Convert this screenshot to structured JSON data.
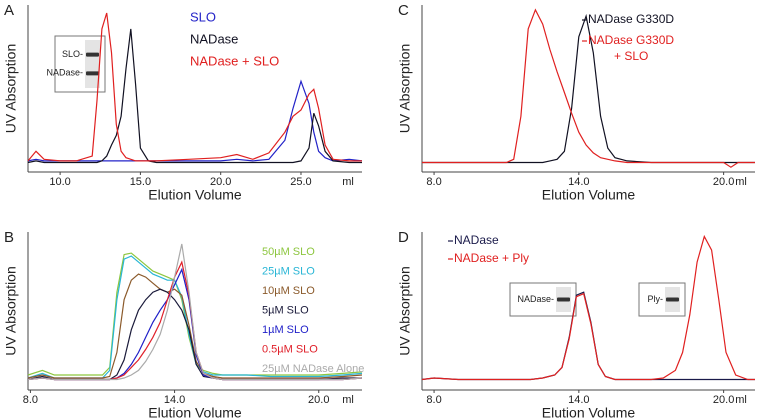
{
  "chart_data": [
    {
      "type": "line",
      "label": "A",
      "xlabel": "Elution Volume",
      "ylabel": "UV Absorption",
      "x_unit": "ml",
      "xlim": [
        8,
        28.8
      ],
      "ylim": [
        -5,
        100
      ],
      "xticks": [
        {
          "value": 10,
          "label": "10.0"
        },
        {
          "value": 15,
          "label": "15.0"
        },
        {
          "value": 20,
          "label": "20.0"
        },
        {
          "value": 25,
          "label": "25.0"
        }
      ],
      "x": [
        8,
        8.5,
        9,
        10,
        11,
        12,
        12.3,
        12.6,
        12.9,
        13.2,
        13.5,
        13.8,
        14.1,
        14.4,
        14.7,
        15,
        15.5,
        16,
        18,
        20,
        21,
        22,
        23,
        24,
        24.5,
        25,
        25.5,
        25.8,
        26.1,
        26.5,
        27,
        28,
        28.8
      ],
      "series": [
        {
          "name": "SLO",
          "color": "#2323c8",
          "values": [
            2,
            3,
            2,
            2,
            2,
            2,
            2,
            2,
            2,
            2,
            2,
            2,
            2,
            2,
            2,
            2,
            2,
            2,
            2,
            2,
            3,
            2,
            3,
            15,
            35,
            52,
            38,
            20,
            8,
            4,
            2,
            3,
            2
          ]
        },
        {
          "name": "NADase",
          "color": "#111122",
          "values": [
            1,
            2,
            1,
            1,
            1,
            1,
            1,
            2,
            5,
            12,
            18,
            30,
            60,
            85,
            50,
            10,
            2,
            1,
            1,
            1,
            1,
            1,
            1,
            1,
            1,
            2,
            10,
            32,
            24,
            8,
            2,
            1,
            1
          ]
        },
        {
          "name": "NADase + SLO",
          "color": "#e02020",
          "values": [
            2,
            8,
            3,
            2,
            2,
            5,
            40,
            85,
            95,
            70,
            25,
            8,
            4,
            3,
            2,
            2,
            2,
            2,
            3,
            4,
            6,
            3,
            7,
            20,
            30,
            34,
            44,
            47,
            35,
            12,
            3,
            2,
            2
          ]
        }
      ],
      "insets": [
        {
          "labels": [
            "SLO-",
            "NADase-"
          ]
        }
      ]
    },
    {
      "type": "line",
      "label": "B",
      "xlabel": "Elution Volume",
      "ylabel": "UV Absorption",
      "x_unit": "ml",
      "xlim": [
        7.9,
        21.8
      ],
      "ylim": [
        -5,
        100
      ],
      "xticks": [
        {
          "value": 8,
          "label": "8.0"
        },
        {
          "value": 14,
          "label": "14.0"
        },
        {
          "value": 20,
          "label": "20.0"
        }
      ],
      "x": [
        7.9,
        8.5,
        9,
        10,
        11,
        11.3,
        11.6,
        11.9,
        12.2,
        12.5,
        12.8,
        13.1,
        13.4,
        13.7,
        14,
        14.3,
        14.6,
        14.9,
        15.2,
        15.6,
        16,
        17,
        18,
        19,
        20,
        21,
        21.8
      ],
      "series": [
        {
          "name": "50µM SLO",
          "color": "#8dc63f",
          "values": [
            5,
            8,
            5,
            5,
            5,
            10,
            60,
            85,
            86,
            82,
            78,
            74,
            72,
            70,
            68,
            55,
            30,
            12,
            8,
            6,
            5,
            5,
            5,
            5,
            5,
            6,
            7
          ]
        },
        {
          "name": "25µM SLO",
          "color": "#29b6d6",
          "values": [
            3,
            6,
            3,
            3,
            3,
            8,
            55,
            82,
            84,
            80,
            76,
            72,
            70,
            68,
            68,
            57,
            32,
            12,
            7,
            5,
            5,
            5,
            4,
            4,
            4,
            5,
            6
          ]
        },
        {
          "name": "10µM SLO",
          "color": "#8b5a2b",
          "values": [
            3,
            5,
            3,
            3,
            3,
            4,
            20,
            55,
            68,
            72,
            70,
            66,
            62,
            60,
            62,
            58,
            38,
            14,
            6,
            4,
            3,
            3,
            3,
            3,
            3,
            4,
            5
          ]
        },
        {
          "name": "5µM SLO",
          "color": "#1a1a3a",
          "values": [
            2,
            4,
            2,
            2,
            2,
            2,
            5,
            15,
            35,
            48,
            55,
            60,
            62,
            60,
            55,
            48,
            35,
            12,
            4,
            3,
            2,
            2,
            2,
            2,
            2,
            3,
            3
          ]
        },
        {
          "name": "1µM SLO",
          "color": "#1f1fc8",
          "values": [
            2,
            3,
            2,
            2,
            2,
            2,
            3,
            6,
            12,
            20,
            30,
            40,
            48,
            55,
            65,
            75,
            55,
            18,
            5,
            3,
            2,
            2,
            2,
            2,
            2,
            2,
            3
          ]
        },
        {
          "name": "0.5µM SLO",
          "color": "#e0202a",
          "values": [
            2,
            3,
            2,
            2,
            2,
            2,
            3,
            5,
            10,
            15,
            22,
            30,
            40,
            55,
            70,
            80,
            58,
            20,
            6,
            3,
            2,
            2,
            2,
            2,
            2,
            2,
            3
          ]
        },
        {
          "name": "25µM NADase Alone",
          "color": "#aaaaaa",
          "values": [
            2,
            3,
            2,
            2,
            2,
            2,
            2,
            3,
            5,
            8,
            14,
            22,
            32,
            48,
            70,
            92,
            60,
            20,
            6,
            3,
            2,
            2,
            2,
            2,
            2,
            2,
            3
          ]
        }
      ]
    },
    {
      "type": "line",
      "label": "C",
      "xlabel": "Elution Volume",
      "ylabel": "UV Absorption",
      "x_unit": "ml",
      "xlim": [
        7.5,
        21.3
      ],
      "ylim": [
        -5,
        100
      ],
      "xticks": [
        {
          "value": 8,
          "label": "8.0"
        },
        {
          "value": 14,
          "label": "14.0"
        },
        {
          "value": 20,
          "label": "20.0"
        }
      ],
      "x": [
        7.5,
        8,
        9,
        10,
        10.5,
        11,
        11.3,
        11.6,
        11.9,
        12.2,
        12.5,
        12.8,
        13.1,
        13.4,
        13.7,
        14,
        14.3,
        14.6,
        14.9,
        15.2,
        15.5,
        16,
        17,
        18,
        19,
        20,
        20.3,
        20.6,
        21,
        21.3
      ],
      "series": [
        {
          "name": "NADase G330D",
          "color": "#111122",
          "values": [
            1,
            1,
            1,
            1,
            1,
            1,
            1,
            1,
            1,
            1,
            1,
            2,
            3,
            8,
            35,
            80,
            93,
            70,
            30,
            10,
            4,
            2,
            1,
            1,
            1,
            1,
            1,
            1,
            1,
            1
          ]
        },
        {
          "name": "NADase G330D\n+ SLO",
          "color": "#e02020",
          "values": [
            1,
            1,
            1,
            1,
            1,
            1,
            3,
            30,
            85,
            97,
            88,
            72,
            58,
            45,
            32,
            20,
            12,
            7,
            4,
            3,
            2,
            1,
            1,
            1,
            1,
            1,
            -2,
            1,
            1,
            1
          ]
        }
      ]
    },
    {
      "type": "line",
      "label": "D",
      "xlabel": "Elution Volume",
      "ylabel": "UV Absorption",
      "x_unit": "ml",
      "xlim": [
        7.5,
        21.3
      ],
      "ylim": [
        -5,
        100
      ],
      "xticks": [
        {
          "value": 8,
          "label": "8.0"
        },
        {
          "value": 14,
          "label": "14.0"
        },
        {
          "value": 20,
          "label": "20.0"
        }
      ],
      "x": [
        7.5,
        8,
        9,
        10,
        11,
        12,
        12.5,
        13,
        13.3,
        13.6,
        13.9,
        14.2,
        14.5,
        14.8,
        15.1,
        15.5,
        16,
        17,
        17.5,
        18,
        18.3,
        18.6,
        18.9,
        19.2,
        19.5,
        19.8,
        20.1,
        20.5,
        21,
        21.3
      ],
      "series": [
        {
          "name": "NADase",
          "color": "#1a1a4a",
          "values": [
            2,
            3,
            2,
            2,
            2,
            2,
            3,
            5,
            10,
            30,
            58,
            60,
            40,
            12,
            4,
            2,
            2,
            2,
            2,
            2,
            2,
            2,
            2,
            2,
            2,
            2,
            2,
            2,
            2,
            2
          ]
        },
        {
          "name": "NADase + Ply",
          "color": "#e02020",
          "values": [
            2,
            3,
            2,
            2,
            2,
            2,
            3,
            5,
            10,
            29,
            57,
            59,
            39,
            12,
            4,
            2,
            2,
            2,
            3,
            8,
            20,
            45,
            80,
            97,
            88,
            55,
            20,
            5,
            2,
            2
          ]
        }
      ],
      "insets": [
        {
          "labels": [
            "NADase-"
          ]
        },
        {
          "labels": [
            "Ply-"
          ]
        }
      ]
    }
  ]
}
